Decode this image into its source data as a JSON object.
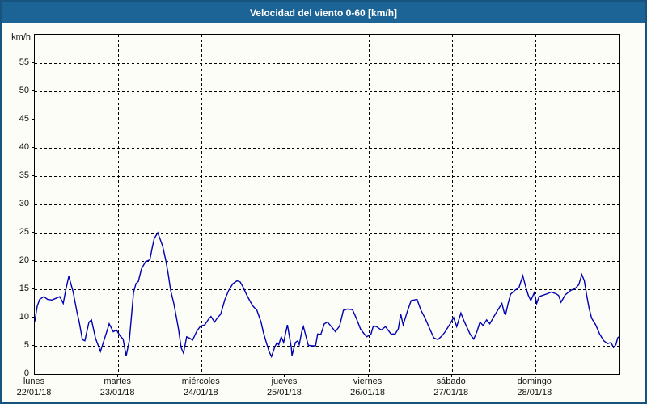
{
  "titlebar": {
    "title": "Velocidad del viento 0-60 [km/h]"
  },
  "colors": {
    "titlebar_bg": "#1d6496",
    "page_bg": "#fcfdf6",
    "window_border": "#17537f",
    "line": "#0000b2",
    "grid": "#000000",
    "text": "#111111"
  },
  "chart_data": {
    "type": "line",
    "title": "Velocidad del viento 0-60 [km/h]",
    "ylabel": "km/h",
    "ylim": [
      0,
      60
    ],
    "ytick_step": 5,
    "ytick_labels": [
      "0",
      "5",
      "10",
      "15",
      "20",
      "25",
      "30",
      "35",
      "40",
      "45",
      "50",
      "55"
    ],
    "grid": "dashed",
    "x_unit": "hours",
    "xlim": [
      0,
      168
    ],
    "days": [
      {
        "name": "lunes",
        "date": "22/01/18"
      },
      {
        "name": "martes",
        "date": "23/01/18"
      },
      {
        "name": "miércoles",
        "date": "24/01/18"
      },
      {
        "name": "jueves",
        "date": "25/01/18"
      },
      {
        "name": "viernes",
        "date": "26/01/18"
      },
      {
        "name": "sábado",
        "date": "27/01/18"
      },
      {
        "name": "domingo",
        "date": "28/01/18"
      }
    ],
    "series": [
      {
        "name": "velocidad del viento",
        "x": [
          0,
          0.7,
          1.4,
          2.6,
          3.7,
          4.9,
          6.1,
          7.2,
          8.2,
          8.9,
          9.8,
          11.0,
          12.1,
          12.8,
          13.7,
          14.4,
          15.6,
          16.3,
          17.5,
          18.9,
          20.5,
          21.4,
          22.6,
          23.5,
          24.5,
          25.4,
          26.3,
          27.2,
          28.4,
          29.1,
          29.8,
          30.7,
          31.9,
          33.1,
          33.8,
          34.4,
          35.4,
          36.8,
          37.7,
          38.4,
          39.1,
          40.0,
          40.7,
          41.4,
          42.1,
          42.8,
          43.7,
          44.7,
          45.4,
          46.6,
          47.7,
          48.9,
          50.1,
          50.7,
          51.7,
          52.6,
          53.5,
          54.7,
          55.8,
          57.0,
          58.2,
          59.1,
          60.0,
          60.9,
          62.1,
          62.8,
          63.9,
          65.1,
          65.8,
          66.7,
          67.4,
          68.1,
          69.0,
          69.7,
          70.2,
          70.9,
          71.6,
          72.5,
          72.7,
          73.8,
          74.0,
          75.0,
          75.7,
          76.1,
          76.8,
          77.3,
          78.7,
          79.8,
          80.8,
          81.4,
          82.3,
          83.3,
          84.2,
          85.6,
          86.5,
          87.7,
          88.8,
          90.0,
          91.4,
          92.5,
          93.7,
          94.8,
          95.5,
          96.7,
          97.4,
          98.3,
          99.7,
          100.9,
          102.5,
          103.7,
          104.6,
          105.3,
          106.0,
          107.2,
          108.3,
          110.0,
          111.1,
          112.3,
          113.5,
          114.8,
          116.0,
          117.2,
          118.1,
          119.5,
          120.5,
          121.4,
          122.6,
          123.5,
          124.4,
          125.3,
          126.3,
          127.2,
          128.1,
          129.0,
          130.0,
          130.9,
          132.3,
          133.4,
          134.4,
          135.1,
          135.5,
          136.2,
          136.9,
          138.1,
          139.3,
          140.4,
          141.3,
          142.0,
          142.7,
          143.7,
          144.4,
          145.1,
          146.0,
          147.4,
          148.6,
          150.0,
          150.7,
          151.4,
          152.6,
          154.2,
          155.4,
          156.5,
          157.4,
          158.1,
          158.8,
          159.5,
          160.2,
          161.4,
          162.5,
          163.7,
          164.8,
          165.8,
          166.5,
          167.2,
          167.7,
          168.0
        ],
        "values": [
          9.3,
          12.0,
          13.2,
          13.7,
          13.2,
          13.1,
          13.4,
          13.7,
          12.5,
          14.8,
          17.3,
          14.6,
          11.1,
          9.2,
          6.1,
          5.9,
          9.2,
          9.6,
          6.3,
          4.0,
          7.1,
          8.9,
          7.5,
          7.8,
          6.8,
          6.2,
          3.2,
          5.9,
          14.4,
          16.0,
          16.4,
          18.6,
          19.9,
          20.2,
          22.4,
          24.0,
          25.0,
          22.6,
          20.1,
          17.7,
          14.8,
          12.5,
          10.2,
          7.8,
          4.7,
          3.7,
          6.6,
          6.3,
          6.0,
          7.6,
          8.5,
          8.7,
          9.8,
          10.2,
          9.2,
          10.0,
          10.6,
          13.2,
          14.8,
          16.0,
          16.5,
          16.3,
          15.3,
          14.1,
          12.7,
          12.0,
          11.3,
          9.2,
          7.3,
          5.4,
          4.0,
          3.1,
          4.7,
          5.6,
          5.2,
          6.6,
          5.6,
          8.2,
          8.7,
          4.7,
          3.3,
          5.6,
          5.9,
          5.2,
          7.5,
          8.4,
          5.1,
          5.0,
          5.0,
          7.1,
          7.0,
          8.9,
          9.2,
          8.2,
          7.5,
          8.5,
          11.3,
          11.5,
          11.4,
          9.9,
          8.0,
          7.1,
          6.6,
          7.0,
          8.5,
          8.4,
          7.8,
          8.4,
          7.1,
          7.1,
          8.0,
          10.6,
          8.7,
          11.1,
          13.0,
          13.2,
          11.3,
          9.9,
          8.2,
          6.4,
          6.1,
          6.8,
          7.5,
          8.9,
          10.0,
          8.4,
          10.8,
          9.4,
          8.2,
          7.0,
          6.2,
          7.5,
          9.2,
          8.6,
          9.6,
          8.9,
          10.4,
          11.5,
          12.5,
          10.8,
          10.6,
          12.5,
          14.1,
          14.8,
          15.3,
          17.4,
          15.3,
          13.9,
          13.0,
          14.4,
          12.5,
          13.7,
          13.9,
          14.2,
          14.5,
          14.2,
          13.9,
          12.7,
          14.0,
          14.8,
          15.1,
          15.8,
          17.6,
          16.5,
          13.9,
          11.6,
          9.9,
          8.7,
          7.1,
          5.9,
          5.4,
          5.6,
          4.7,
          5.2,
          6.4,
          6.6
        ]
      }
    ]
  }
}
